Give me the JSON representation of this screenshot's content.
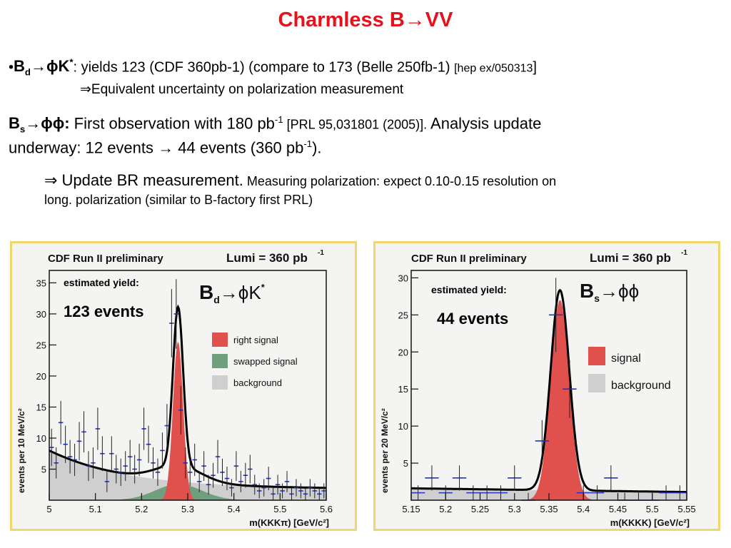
{
  "slide": {
    "title": "Charmless B→VV",
    "bullet1": {
      "bullet": "•",
      "label_b": "B",
      "label_sub": "d",
      "label_arrow": "→ϕK",
      "label_sup": "*",
      "text": ": yields 123 (CDF 360pb-1) (compare  to 173 (Belle 250fb-1) ",
      "ref": "[hep ex/050313",
      "ref_close": "]"
    },
    "bullet1_sub": "⇒Equivalent uncertainty on polarization measurement",
    "bullet2": {
      "label_b": "B",
      "label_sub": "s",
      "label_arrow": "→ϕϕ:",
      "text": " First observation with 180 pb",
      "sup1": "-1",
      "ref": "  [PRL 95,031801 (2005)].",
      "text2": " Analysis update",
      "line2": "underway: 12 events → 44 events (360 pb",
      "sup2": "-1",
      "line2_end": ")."
    },
    "bullet2_sub": {
      "part1": "⇒ Update BR measurement.",
      "part2": " Measuring polarization: expect 0.10-0.15 resolution on",
      "line2": "long. polarization (similar to B-factory first PRL)"
    }
  },
  "chart_data": [
    {
      "type": "histogram",
      "header_left": "CDF Run II preliminary",
      "header_right": "Lumi = 360 pb",
      "header_right_sup": "-1",
      "process": "B",
      "process_sub": "d",
      "process_rest": "→ϕK",
      "process_sup": "*",
      "annotation_label": "estimated yield:",
      "annotation_value": "123 events",
      "xlabel": "m(KKKπ) [GeV/c²]",
      "ylabel": "events per 10 MeV/c²",
      "xlim": [
        5.0,
        5.6
      ],
      "ylim": [
        0,
        37
      ],
      "xticks": [
        "5",
        "5.1",
        "5.2",
        "5.3",
        "5.4",
        "5.5",
        "5.6"
      ],
      "yticks": [
        "5",
        "10",
        "15",
        "20",
        "25",
        "30",
        "35"
      ],
      "legend": [
        "right signal",
        "swapped signal",
        "background"
      ],
      "legend_position": "right",
      "colors": {
        "signal": "#e0504c",
        "swapped": "#6f9f7d",
        "background": "#cfcfcf",
        "fit": "#000000",
        "points": "#2434c0"
      },
      "model": {
        "bg_start": 8.0,
        "bg_end": 1.8,
        "bg_slope": 3.5,
        "signal_mean": 5.279,
        "signal_sigma": 0.011,
        "signal_amp": 25.5,
        "swapped_mean": 5.28,
        "swapped_sigma": 0.05,
        "swapped_amp": 2.6
      },
      "points": [
        {
          "x": 5.005,
          "y": 8.5,
          "err": 3.0
        },
        {
          "x": 5.015,
          "y": 6.0,
          "err": 2.5
        },
        {
          "x": 5.025,
          "y": 12.5,
          "err": 3.5
        },
        {
          "x": 5.035,
          "y": 9.0,
          "err": 3.0
        },
        {
          "x": 5.045,
          "y": 7.0,
          "err": 2.7
        },
        {
          "x": 5.055,
          "y": 6.5,
          "err": 2.6
        },
        {
          "x": 5.065,
          "y": 9.5,
          "err": 3.1
        },
        {
          "x": 5.075,
          "y": 11.0,
          "err": 3.3
        },
        {
          "x": 5.085,
          "y": 5.5,
          "err": 2.4
        },
        {
          "x": 5.095,
          "y": 6.0,
          "err": 2.5
        },
        {
          "x": 5.105,
          "y": 11.5,
          "err": 3.4
        },
        {
          "x": 5.115,
          "y": 7.5,
          "err": 2.8
        },
        {
          "x": 5.125,
          "y": 3.0,
          "err": 1.7
        },
        {
          "x": 5.135,
          "y": 7.5,
          "err": 2.8
        },
        {
          "x": 5.145,
          "y": 5.0,
          "err": 2.3
        },
        {
          "x": 5.155,
          "y": 4.5,
          "err": 2.2
        },
        {
          "x": 5.165,
          "y": 5.5,
          "err": 2.4
        },
        {
          "x": 5.175,
          "y": 7.0,
          "err": 2.7
        },
        {
          "x": 5.185,
          "y": 5.0,
          "err": 2.3
        },
        {
          "x": 5.195,
          "y": 6.5,
          "err": 2.6
        },
        {
          "x": 5.205,
          "y": 11.5,
          "err": 3.4
        },
        {
          "x": 5.215,
          "y": 9.0,
          "err": 3.0
        },
        {
          "x": 5.225,
          "y": 6.0,
          "err": 2.5
        },
        {
          "x": 5.235,
          "y": 4.5,
          "err": 2.2
        },
        {
          "x": 5.245,
          "y": 8.0,
          "err": 2.9
        },
        {
          "x": 5.255,
          "y": 12.0,
          "err": 3.5
        },
        {
          "x": 5.265,
          "y": 28.5,
          "err": 5.5
        },
        {
          "x": 5.275,
          "y": 30.0,
          "err": 5.6
        },
        {
          "x": 5.285,
          "y": 14.5,
          "err": 3.9
        },
        {
          "x": 5.295,
          "y": 6.0,
          "err": 2.5
        },
        {
          "x": 5.305,
          "y": 4.5,
          "err": 2.2
        },
        {
          "x": 5.315,
          "y": 6.5,
          "err": 2.6
        },
        {
          "x": 5.325,
          "y": 3.0,
          "err": 1.7
        },
        {
          "x": 5.335,
          "y": 5.5,
          "err": 2.4
        },
        {
          "x": 5.345,
          "y": 2.5,
          "err": 1.6
        },
        {
          "x": 5.355,
          "y": 4.0,
          "err": 2.0
        },
        {
          "x": 5.365,
          "y": 7.0,
          "err": 2.7
        },
        {
          "x": 5.375,
          "y": 4.5,
          "err": 2.2
        },
        {
          "x": 5.385,
          "y": 3.5,
          "err": 1.9
        },
        {
          "x": 5.395,
          "y": 2.0,
          "err": 1.4
        },
        {
          "x": 5.405,
          "y": 5.5,
          "err": 2.4
        },
        {
          "x": 5.415,
          "y": 3.0,
          "err": 1.7
        },
        {
          "x": 5.425,
          "y": 4.0,
          "err": 2.0
        },
        {
          "x": 5.435,
          "y": 5.0,
          "err": 2.3
        },
        {
          "x": 5.445,
          "y": 2.5,
          "err": 1.6
        },
        {
          "x": 5.455,
          "y": 1.5,
          "err": 1.2
        },
        {
          "x": 5.465,
          "y": 2.0,
          "err": 1.4
        },
        {
          "x": 5.475,
          "y": 3.5,
          "err": 1.9
        },
        {
          "x": 5.485,
          "y": 1.0,
          "err": 1.0
        },
        {
          "x": 5.495,
          "y": 2.5,
          "err": 1.6
        },
        {
          "x": 5.505,
          "y": 1.5,
          "err": 1.2
        },
        {
          "x": 5.515,
          "y": 3.0,
          "err": 1.7
        },
        {
          "x": 5.525,
          "y": 1.0,
          "err": 1.0
        },
        {
          "x": 5.535,
          "y": 2.0,
          "err": 1.4
        },
        {
          "x": 5.545,
          "y": 1.5,
          "err": 1.2
        },
        {
          "x": 5.555,
          "y": 1.0,
          "err": 1.0
        },
        {
          "x": 5.565,
          "y": 2.0,
          "err": 1.4
        },
        {
          "x": 5.575,
          "y": 1.5,
          "err": 1.2
        },
        {
          "x": 5.585,
          "y": 1.0,
          "err": 1.0
        },
        {
          "x": 5.595,
          "y": 1.5,
          "err": 1.2
        }
      ]
    },
    {
      "type": "histogram",
      "header_left": "CDF Run II preliminary",
      "header_right": "Lumi = 360 pb",
      "header_right_sup": "-1",
      "process": "B",
      "process_sub": "s",
      "process_rest": "→ϕϕ",
      "process_sup": "",
      "annotation_label": "estimated yield:",
      "annotation_value": "44 events",
      "xlabel": "m(KKKK) [GeV/c²]",
      "ylabel": "events per 20 MeV/c²",
      "xlim": [
        5.15,
        5.55
      ],
      "ylim": [
        0,
        31
      ],
      "xticks": [
        "5.15",
        "5.2",
        "5.25",
        "5.3",
        "5.35",
        "5.4",
        "5.45",
        "5.5",
        "5.55"
      ],
      "yticks": [
        "5",
        "10",
        "15",
        "20",
        "25",
        "30"
      ],
      "legend": [
        "signal",
        "background"
      ],
      "legend_position": "right",
      "colors": {
        "signal": "#e0504c",
        "background": "#cfcfcf",
        "fit": "#000000",
        "points": "#2434c0"
      },
      "model": {
        "bg_start": 1.6,
        "bg_end": 1.1,
        "signal_mean": 5.366,
        "signal_sigma": 0.0135,
        "signal_amp": 27.0
      },
      "points": [
        {
          "x": 5.16,
          "y": 1.0,
          "err": 1.0
        },
        {
          "x": 5.18,
          "y": 3.0,
          "err": 1.7
        },
        {
          "x": 5.2,
          "y": 1.0,
          "err": 1.0
        },
        {
          "x": 5.22,
          "y": 3.0,
          "err": 1.7
        },
        {
          "x": 5.24,
          "y": 1.0,
          "err": 1.0
        },
        {
          "x": 5.26,
          "y": 1.0,
          "err": 1.0
        },
        {
          "x": 5.28,
          "y": 1.0,
          "err": 1.0
        },
        {
          "x": 5.3,
          "y": 3.0,
          "err": 1.7
        },
        {
          "x": 5.32,
          "y": 0.0,
          "err": 1.0
        },
        {
          "x": 5.34,
          "y": 8.0,
          "err": 2.8
        },
        {
          "x": 5.36,
          "y": 25.0,
          "err": 5.0
        },
        {
          "x": 5.38,
          "y": 15.0,
          "err": 3.9
        },
        {
          "x": 5.4,
          "y": 1.0,
          "err": 1.0
        },
        {
          "x": 5.42,
          "y": 1.0,
          "err": 1.0
        },
        {
          "x": 5.44,
          "y": 3.0,
          "err": 1.7
        },
        {
          "x": 5.46,
          "y": 0.0,
          "err": 1.0
        },
        {
          "x": 5.48,
          "y": 0.0,
          "err": 1.0
        },
        {
          "x": 5.5,
          "y": 0.0,
          "err": 1.0
        },
        {
          "x": 5.52,
          "y": 1.0,
          "err": 1.0
        },
        {
          "x": 5.54,
          "y": 1.0,
          "err": 1.0
        }
      ]
    }
  ]
}
